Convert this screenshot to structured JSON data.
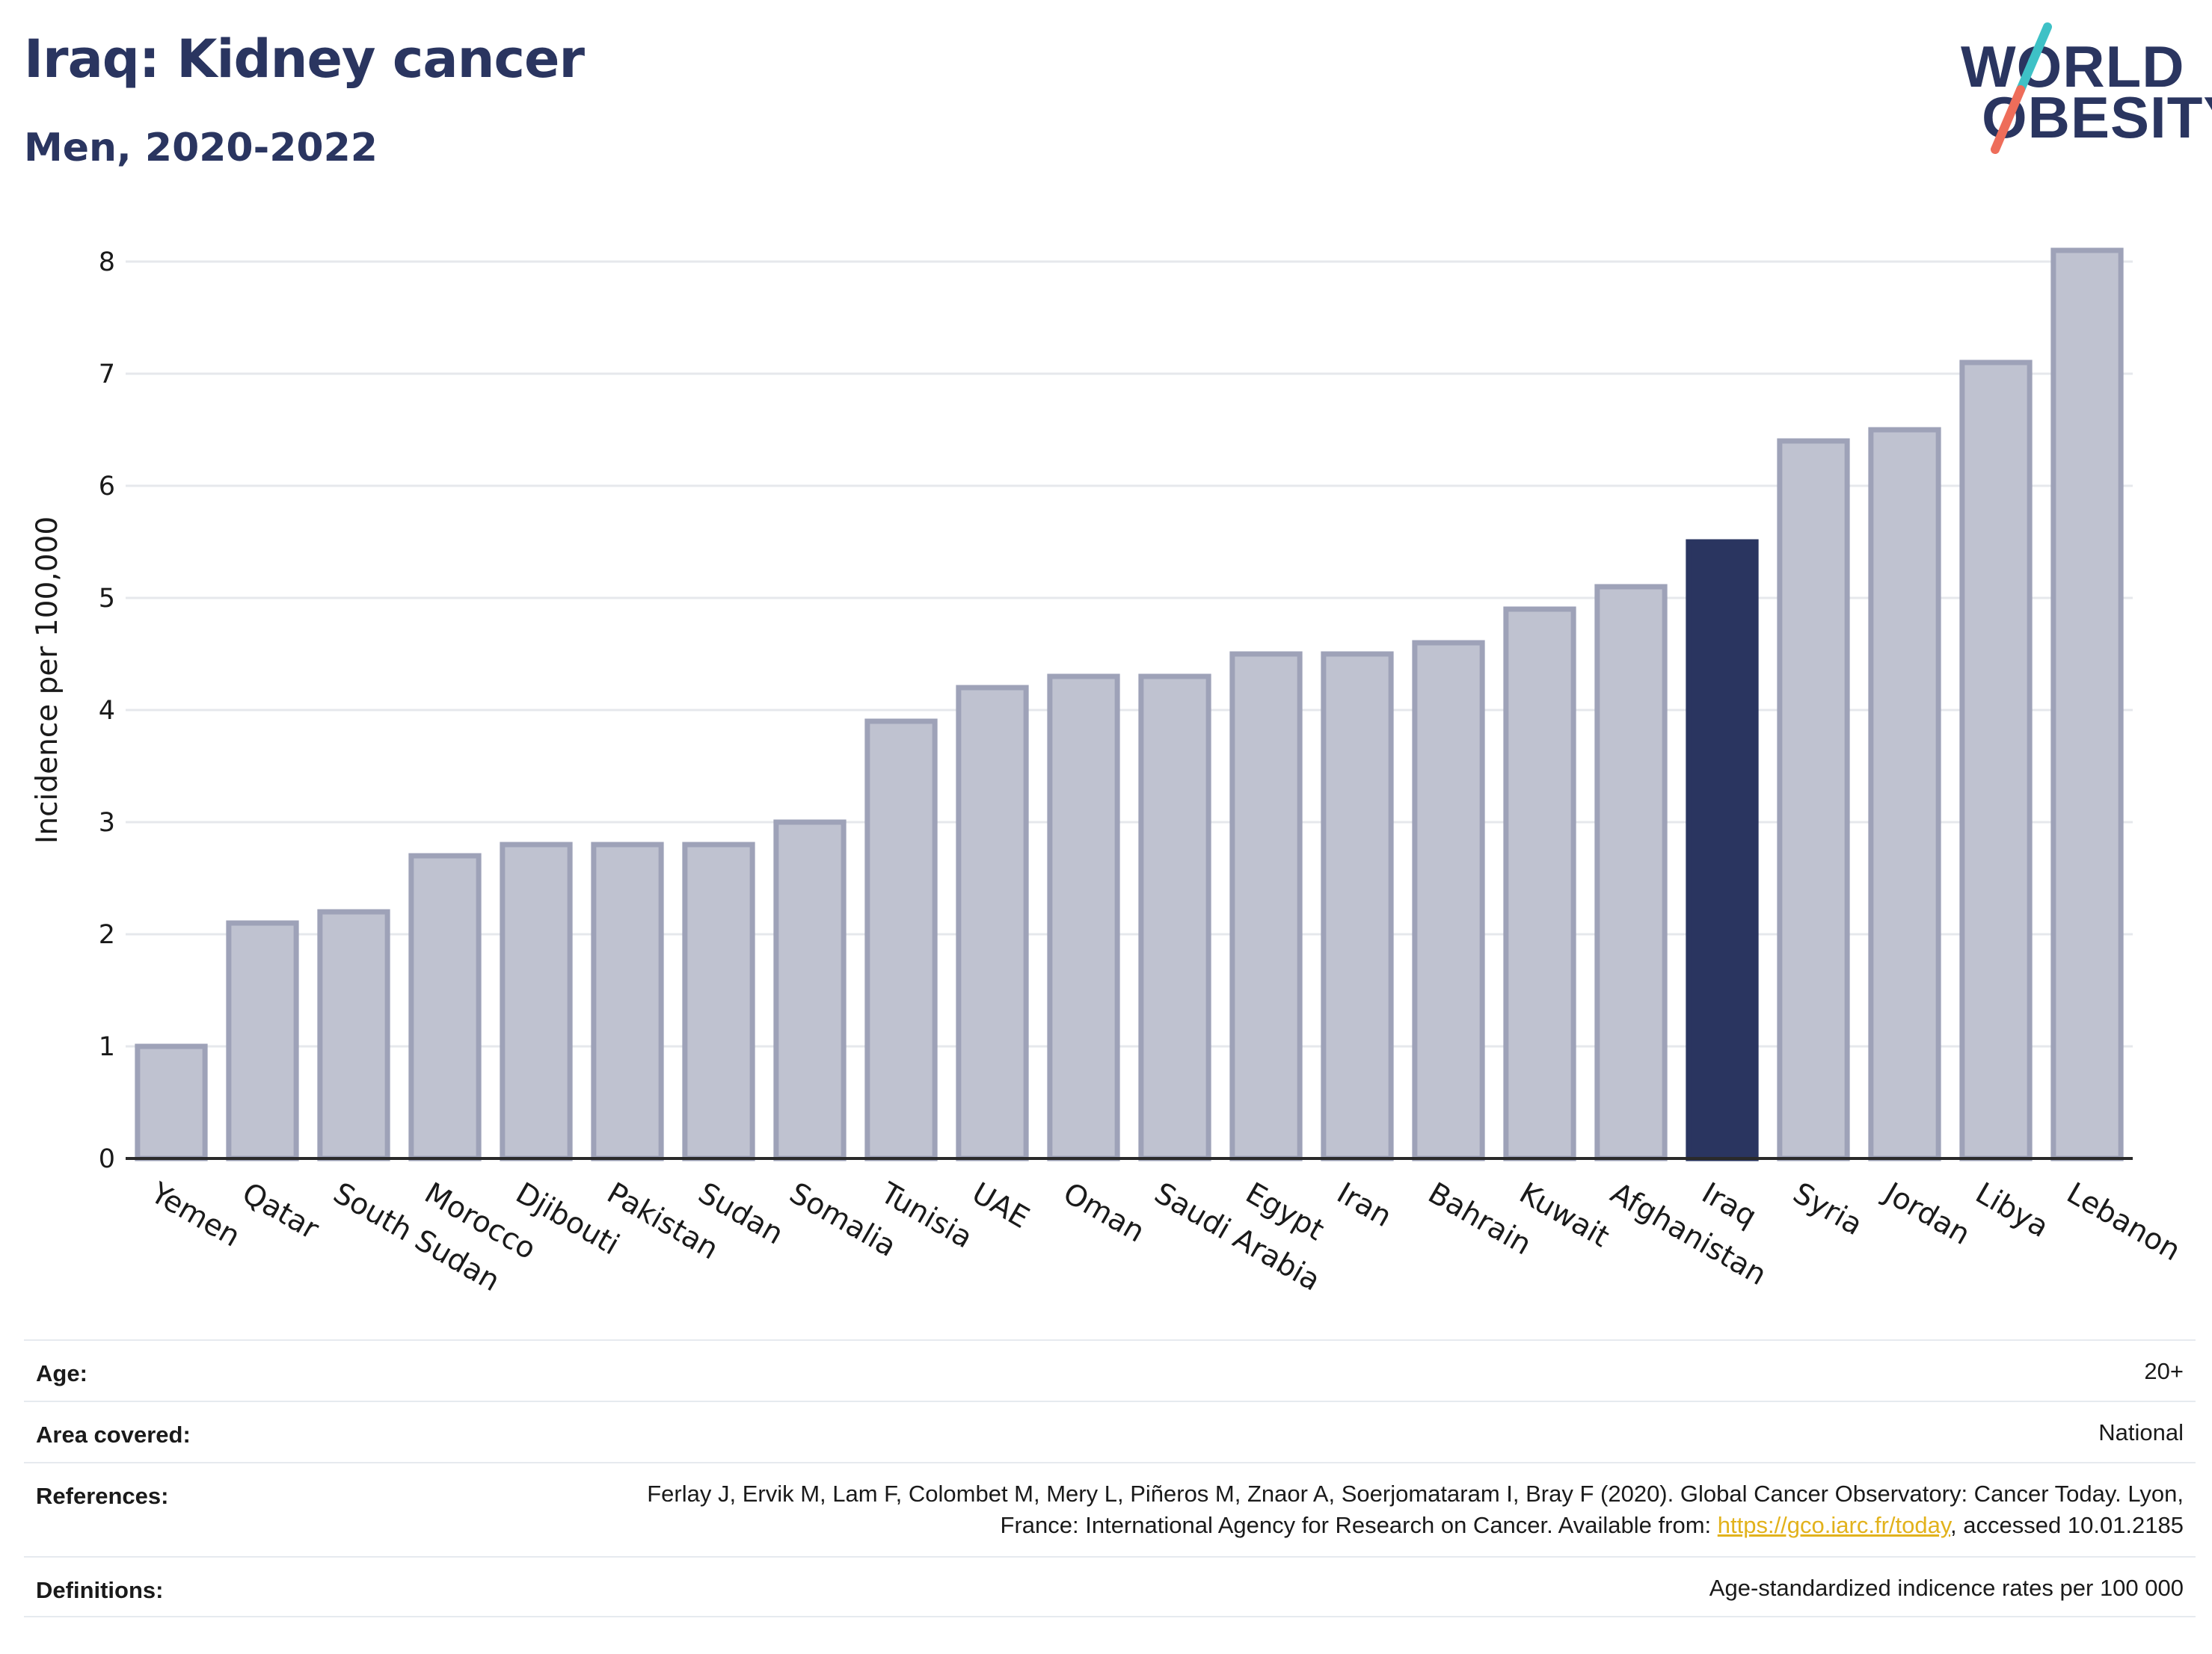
{
  "header": {
    "title": "Iraq: Kidney cancer",
    "subtitle": "Men, 2020-2022"
  },
  "logo": {
    "line1": "WORLD",
    "line2": "OBESITY",
    "colors": {
      "text": "#2a3560",
      "slash_top": "#3ec1c6",
      "slash_bottom": "#ee6d5a"
    }
  },
  "chart_data": {
    "type": "bar",
    "ylabel": "Incidence per 100,000",
    "xlabel": "",
    "ylim": [
      0,
      8.3
    ],
    "yticks": [
      0,
      1,
      2,
      3,
      4,
      5,
      6,
      7,
      8
    ],
    "grid": true,
    "highlight": "Iraq",
    "colors": {
      "bar": "#bfc2d0",
      "bar_edge": "#9ea2b8",
      "highlight": "#2a3560",
      "grid": "#e6e8ec"
    },
    "categories": [
      "Yemen",
      "Qatar",
      "South Sudan",
      "Morocco",
      "Djibouti",
      "Pakistan",
      "Sudan",
      "Somalia",
      "Tunisia",
      "UAE",
      "Oman",
      "Saudi Arabia",
      "Egypt",
      "Iran",
      "Bahrain",
      "Kuwait",
      "Afghanistan",
      "Iraq",
      "Syria",
      "Jordan",
      "Libya",
      "Lebanon"
    ],
    "values": [
      1.0,
      2.1,
      2.2,
      2.7,
      2.8,
      2.8,
      2.8,
      3.0,
      3.9,
      4.2,
      4.3,
      4.3,
      4.5,
      4.5,
      4.6,
      4.9,
      5.1,
      5.5,
      6.4,
      6.5,
      7.1,
      8.1
    ]
  },
  "meta": {
    "age_label": "Age:",
    "age_value": "20+",
    "area_label": "Area covered:",
    "area_value": "National",
    "references_label": "References:",
    "references_text_1": "Ferlay J, Ervik M, Lam F, Colombet M, Mery L, Piñeros M, Znaor A, Soerjomataram I, Bray F (2020). Global Cancer Observatory: Cancer Today. Lyon, France: International Agency for Research on Cancer. Available from: ",
    "references_link": "https://gco.iarc.fr/today",
    "references_text_2": ", accessed 10.01.2185",
    "definitions_label": "Definitions:",
    "definitions_value": "Age-standardized indicence rates per 100 000"
  }
}
